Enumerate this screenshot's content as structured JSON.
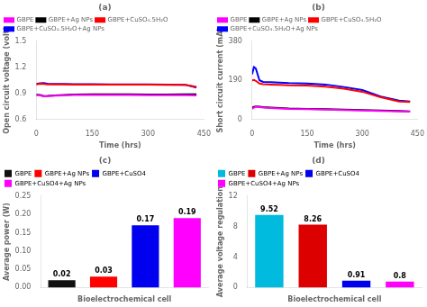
{
  "chart_data": [
    {
      "type": "line",
      "title": "(a)",
      "x_label": "Time (hrs)",
      "y_label": "Open circuit voltage (volt)",
      "xlim": [
        0,
        450
      ],
      "xticks": [
        0,
        150,
        300,
        450
      ],
      "ylim": [
        0.6,
        1.5
      ],
      "yticks": [
        0.6,
        0.9,
        1.2,
        1.5
      ],
      "x": [
        0,
        10,
        20,
        30,
        50,
        75,
        100,
        150,
        200,
        250,
        300,
        350,
        400,
        430
      ],
      "series": [
        {
          "name": "GBPE",
          "color": "#FF00FF",
          "values": [
            0.88,
            0.877,
            0.868,
            0.87,
            0.875,
            0.878,
            0.882,
            0.883,
            0.882,
            0.882,
            0.881,
            0.881,
            0.88,
            0.878
          ]
        },
        {
          "name": "GBPE+Ag NPs",
          "color": "#000000",
          "values": [
            0.885,
            0.883,
            0.87,
            0.872,
            0.878,
            0.882,
            0.887,
            0.889,
            0.889,
            0.889,
            0.888,
            0.888,
            0.889,
            0.889
          ]
        },
        {
          "name": "GBPE+CuSO₄.5H₂O",
          "color": "#FF0000",
          "values": [
            1.005,
            1.012,
            1.008,
            1.005,
            1.004,
            1.003,
            1.002,
            1.002,
            1.002,
            1.002,
            1.001,
            1.0,
            0.998,
            0.975
          ]
        },
        {
          "name": "GBPE+CuSO₄.5H₂O+Ag NPs",
          "color": "#0000FF",
          "values": [
            1.01,
            1.018,
            1.02,
            1.012,
            1.01,
            1.008,
            1.006,
            1.006,
            1.005,
            1.004,
            1.003,
            1.002,
            1.0,
            0.968
          ]
        }
      ],
      "legend": "upper left",
      "grid": false
    },
    {
      "type": "line",
      "title": "(b)",
      "x_label": "Time (hrs)",
      "y_label": "Short circuit current (mA)",
      "xlim": [
        0,
        450
      ],
      "xticks": [
        0,
        150,
        300,
        450
      ],
      "ylim": [
        0,
        380
      ],
      "yticks": [
        0,
        190,
        380
      ],
      "x": [
        0,
        5,
        10,
        20,
        30,
        50,
        75,
        100,
        150,
        200,
        250,
        300,
        350,
        400,
        430
      ],
      "series": [
        {
          "name": "GBPE",
          "color": "#FF00FF",
          "values": [
            52,
            58,
            62,
            60,
            58,
            56,
            54,
            52,
            50,
            48,
            46,
            44,
            42,
            40,
            38
          ]
        },
        {
          "name": "GBPE+Ag NPs",
          "color": "#000000",
          "values": [
            58,
            62,
            64,
            62,
            60,
            58,
            56,
            54,
            52,
            50,
            48,
            46,
            44,
            42,
            40
          ]
        },
        {
          "name": "GBPE+CuSO₄.5H₂O",
          "color": "#FF0000",
          "values": [
            190,
            192,
            188,
            175,
            172,
            170,
            168,
            166,
            165,
            160,
            150,
            135,
            108,
            88,
            85
          ]
        },
        {
          "name": "GBPE+CuSO₄.5H₂O+Ag NPs",
          "color": "#0000FF",
          "values": [
            220,
            255,
            248,
            190,
            183,
            181,
            179,
            177,
            175,
            170,
            158,
            143,
            112,
            92,
            88
          ]
        }
      ],
      "legend": "upper left",
      "grid": false
    },
    {
      "type": "bar",
      "title": "(c)",
      "x_label": "Bioelectrochemical cell",
      "y_label": "Average power (W)",
      "ylim": [
        0,
        0.25
      ],
      "yticks": [
        {
          "value": 0,
          "label": "0.00"
        },
        0.05,
        {
          "value": 0.1,
          "label": "0.10"
        },
        0.15,
        {
          "value": 0.2,
          "label": "0.20"
        },
        0.25
      ],
      "categories": [
        "GBPE",
        "GBPE+Ag NPs",
        "GBPE+CuSO4",
        "GBPE+CuSO4+Ag NPs"
      ],
      "values": [
        0.02,
        0.03,
        0.17,
        0.19
      ],
      "colors": [
        "#111111",
        "#FF0000",
        "#0000EE",
        "#FF00FF"
      ],
      "data_labels": true,
      "tick_labels": "y",
      "legend": "upper left",
      "grid": false
    },
    {
      "type": "bar",
      "title": "(d)",
      "x_label": "Bioelectrochemical cell",
      "y_label": "Average voltage regulation",
      "ylim": [
        0,
        12
      ],
      "yticks": [
        0,
        4,
        8,
        12
      ],
      "categories": [
        "GBPE",
        "GBPE+Ag NPs",
        "GBPE+CuSO4",
        "GBPE+CuSO4+Ag NPs"
      ],
      "values": [
        9.52,
        8.26,
        0.91,
        0.8
      ],
      "colors": [
        "#00BBDD",
        "#DD0000",
        "#0000EE",
        "#FF00FF"
      ],
      "data_labels": true,
      "tick_labels": "y",
      "legend": "upper left",
      "grid": false
    }
  ]
}
